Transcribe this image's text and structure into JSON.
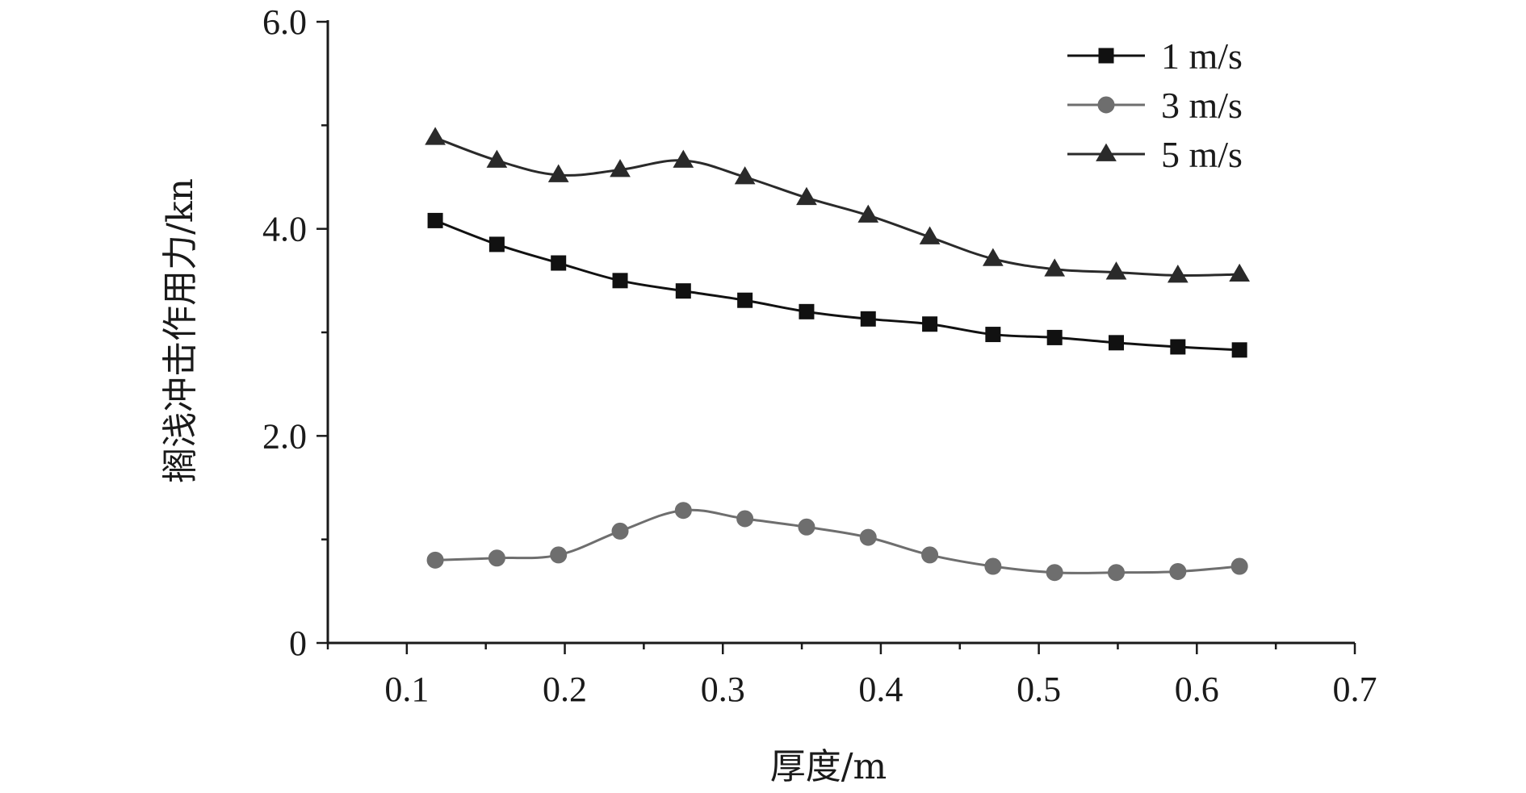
{
  "chart_data": {
    "type": "line",
    "title": "",
    "xlabel": "厚度/m",
    "ylabel": "搁浅冲击作用力/kn",
    "xlim": [
      0.05,
      0.7
    ],
    "ylim": [
      0,
      6
    ],
    "x_ticks": [
      0.1,
      0.2,
      0.3,
      0.4,
      0.5,
      0.6,
      0.7
    ],
    "x_tick_labels": [
      "0.1",
      "0.2",
      "0.3",
      "0.4",
      "0.5",
      "0.6",
      "0.7"
    ],
    "y_ticks": [
      0,
      2,
      4,
      6
    ],
    "y_tick_labels": [
      "0",
      "2.0",
      "4.0",
      "6.0"
    ],
    "grid": false,
    "legend_position": "top-right",
    "x": [
      0.118,
      0.157,
      0.196,
      0.235,
      0.275,
      0.314,
      0.353,
      0.392,
      0.431,
      0.471,
      0.51,
      0.549,
      0.588,
      0.627
    ],
    "series": [
      {
        "name": "1 m/s",
        "marker": "square",
        "color": "#111111",
        "values": [
          4.08,
          3.85,
          3.67,
          3.5,
          3.4,
          3.31,
          3.2,
          3.13,
          3.08,
          2.98,
          2.95,
          2.9,
          2.86,
          2.83
        ]
      },
      {
        "name": "3 m/s",
        "marker": "circle",
        "color": "#6e6e6e",
        "values": [
          0.8,
          0.82,
          0.85,
          1.08,
          1.28,
          1.2,
          1.12,
          1.02,
          0.85,
          0.74,
          0.68,
          0.68,
          0.69,
          0.74
        ]
      },
      {
        "name": "5 m/s",
        "marker": "triangle",
        "color": "#2a2a2a",
        "values": [
          4.88,
          4.66,
          4.52,
          4.57,
          4.66,
          4.5,
          4.3,
          4.13,
          3.92,
          3.71,
          3.61,
          3.58,
          3.55,
          3.56
        ]
      }
    ]
  }
}
